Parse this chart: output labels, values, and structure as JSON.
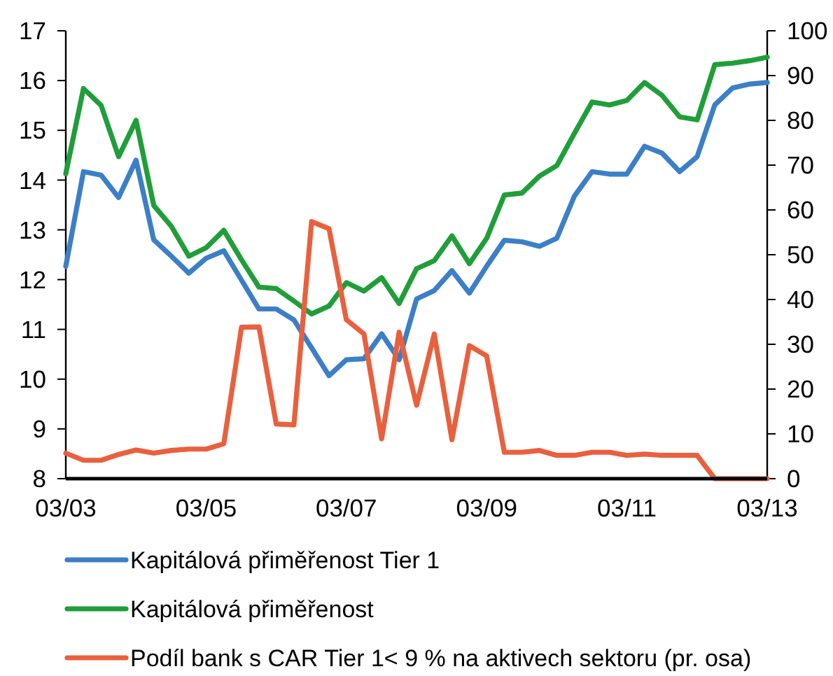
{
  "chart_data": {
    "type": "line",
    "x": [
      "2003-03",
      "2003-06",
      "2003-09",
      "2003-12",
      "2004-03",
      "2004-06",
      "2004-09",
      "2004-12",
      "2005-03",
      "2005-06",
      "2005-09",
      "2005-12",
      "2006-03",
      "2006-06",
      "2006-09",
      "2006-12",
      "2007-03",
      "2007-06",
      "2007-09",
      "2007-12",
      "2008-03",
      "2008-06",
      "2008-09",
      "2008-12",
      "2009-03",
      "2009-06",
      "2009-09",
      "2009-12",
      "2010-03",
      "2010-06",
      "2010-09",
      "2010-12",
      "2011-03",
      "2011-06",
      "2011-09",
      "2011-12",
      "2012-03",
      "2012-06",
      "2012-09",
      "2012-12",
      "2013-03"
    ],
    "series": [
      {
        "name": "Kapitálová přiměřenost Tier 1",
        "color": "#3c7fc6",
        "values": [
          12.27,
          14.17,
          14.1,
          13.65,
          14.4,
          12.8,
          12.47,
          12.13,
          12.43,
          12.58,
          11.99,
          11.41,
          11.41,
          11.19,
          10.63,
          10.07,
          10.39,
          10.41,
          10.91,
          10.39,
          11.61,
          11.78,
          12.18,
          11.73,
          12.27,
          12.79,
          12.76,
          12.67,
          12.83,
          13.68,
          14.17,
          14.12,
          14.12,
          14.68,
          14.54,
          14.17,
          14.47,
          15.51,
          15.85,
          15.93,
          15.96
        ]
      },
      {
        "name": "Kapitálová přiměřenost",
        "color": "#1f9e39",
        "values": [
          14.13,
          15.84,
          15.5,
          14.47,
          15.2,
          13.49,
          13.07,
          12.47,
          12.64,
          12.99,
          12.4,
          11.85,
          11.82,
          11.57,
          11.31,
          11.47,
          11.94,
          11.77,
          12.04,
          11.52,
          12.22,
          12.38,
          12.88,
          12.32,
          12.83,
          13.7,
          13.74,
          14.08,
          14.29,
          14.94,
          15.57,
          15.51,
          15.6,
          15.96,
          15.7,
          15.27,
          15.21,
          16.32,
          16.35,
          16.4,
          16.47
        ]
      },
      {
        "name": "Podíl bank s CAR Tier 1< 9 % na aktivech sektoru (pr. osa)",
        "color": "#e9603e",
        "axis": "y2",
        "values": [
          5.7,
          4.1,
          4.1,
          5.4,
          6.4,
          5.7,
          6.3,
          6.6,
          6.6,
          7.8,
          33.8,
          33.9,
          12.2,
          12.0,
          57.4,
          55.8,
          35.5,
          32.3,
          8.9,
          32.7,
          16.4,
          32.3,
          8.7,
          29.7,
          27.4,
          5.9,
          5.9,
          6.3,
          5.2,
          5.2,
          5.9,
          5.9,
          5.2,
          5.5,
          5.2,
          5.2,
          5.2,
          0,
          0,
          0,
          0
        ]
      }
    ],
    "xlim": [
      "2003-03",
      "2013-03"
    ],
    "xticks": [
      {
        "value": "2003-03",
        "label": "03/03"
      },
      {
        "value": "2005-03",
        "label": "03/05"
      },
      {
        "value": "2007-03",
        "label": "03/07"
      },
      {
        "value": "2009-03",
        "label": "03/09"
      },
      {
        "value": "2011-03",
        "label": "03/11"
      },
      {
        "value": "2013-03",
        "label": "03/13"
      }
    ],
    "ylim": [
      8,
      17
    ],
    "yticks": [
      8,
      9,
      10,
      11,
      12,
      13,
      14,
      15,
      16,
      17
    ],
    "y2lim": [
      0,
      100
    ],
    "y2ticks": [
      0,
      10,
      20,
      30,
      40,
      50,
      60,
      70,
      80,
      90,
      100
    ],
    "legend": "bottom"
  }
}
